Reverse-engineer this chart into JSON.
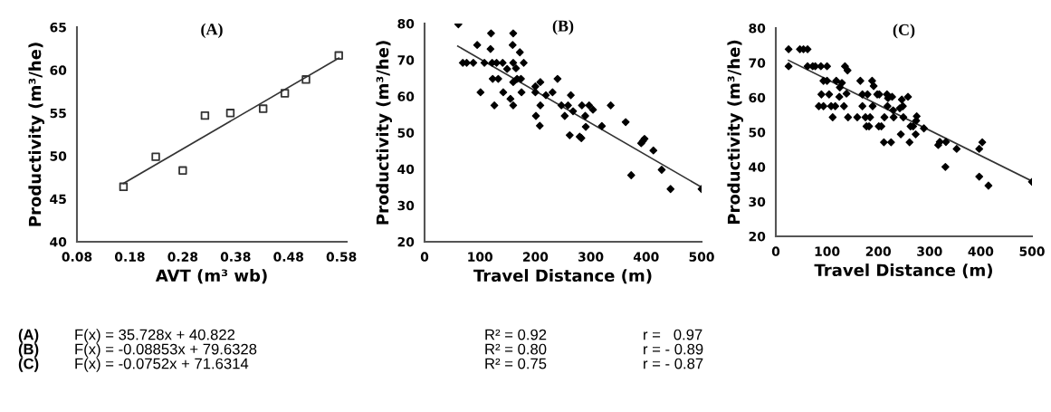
{
  "chart_data": [
    {
      "type": "scatter",
      "title": "(A)",
      "xlabel": "AVT (m³ wb)",
      "ylabel": "Productivity (m³/he)",
      "xlim": [
        0.08,
        0.59
      ],
      "ylim": [
        40,
        65
      ],
      "xticks": [
        {
          "value": 0.08,
          "label": "0.08"
        },
        {
          "value": 0.18,
          "label": "0.18"
        },
        {
          "value": 0.28,
          "label": "0.28"
        },
        {
          "value": 0.38,
          "label": "0.38"
        },
        {
          "value": 0.48,
          "label": "0.48"
        },
        {
          "value": 0.58,
          "label": "0.58"
        }
      ],
      "yticks": [
        40,
        45,
        50,
        55,
        60,
        65
      ],
      "grid": false,
      "series": [
        {
          "type": "scatter",
          "marker": "square",
          "color": "#333333",
          "x": [
            0.168,
            0.229,
            0.28,
            0.322,
            0.37,
            0.432,
            0.473,
            0.513,
            0.575
          ],
          "values": [
            46.4,
            49.9,
            48.3,
            54.7,
            55.0,
            55.5,
            57.3,
            58.9,
            61.7
          ]
        },
        {
          "type": "line",
          "color": "#333333",
          "x": [
            0.168,
            0.575
          ],
          "values": [
            46.8,
            61.4
          ]
        }
      ],
      "annotations": [
        "(A)",
        "F(x) = 35.728x + 40.822",
        "R² = 0.92",
        "r =   0.97"
      ]
    },
    {
      "type": "scatter",
      "title": "(B)",
      "xlabel": "Travel Distance (m)",
      "ylabel": "Productivity (m³/he)",
      "xlim": [
        0,
        500
      ],
      "ylim": [
        20,
        80
      ],
      "xticks": [
        0,
        100,
        200,
        300,
        400,
        500
      ],
      "yticks": [
        20,
        30,
        40,
        50,
        60,
        70,
        80
      ],
      "grid": false,
      "series": [
        {
          "type": "scatter",
          "marker": "diamond",
          "color": "#000000",
          "x": [
            61,
            69,
            76,
            88,
            95,
            101,
            108,
            120,
            119,
            122,
            123,
            126,
            130,
            133,
            141,
            142,
            149,
            155,
            160,
            159,
            160,
            160,
            160,
            165,
            167,
            172,
            174,
            175,
            179,
            200,
            200,
            201,
            209,
            209,
            208,
            219,
            231,
            240,
            247,
            253,
            259,
            262,
            264,
            268,
            280,
            283,
            284,
            290,
            291,
            297,
            304,
            320,
            336,
            363,
            373,
            391,
            394,
            397,
            413,
            428,
            444,
            500
          ],
          "values": [
            79.8,
            69.2,
            69.2,
            69.2,
            74.1,
            61.1,
            69.2,
            77.3,
            73.0,
            69.2,
            64.8,
            57.5,
            69.2,
            64.8,
            69.2,
            61.1,
            67.5,
            59.3,
            77.3,
            74.1,
            69.2,
            63.9,
            57.5,
            67.7,
            64.8,
            72.1,
            64.8,
            61.1,
            69.2,
            62.7,
            61.1,
            54.6,
            63.9,
            57.5,
            51.9,
            60.3,
            61.1,
            64.8,
            57.5,
            54.6,
            57.5,
            49.3,
            60.3,
            55.9,
            48.9,
            48.5,
            57.5,
            54.6,
            51.6,
            57.5,
            56.3,
            51.8,
            57.5,
            52.9,
            38.3,
            47.1,
            47.7,
            48.3,
            45.1,
            39.8,
            34.5,
            34.5
          ]
        },
        {
          "type": "line",
          "color": "#333333",
          "x": [
            60,
            500
          ],
          "values": [
            73.8,
            35.0
          ]
        }
      ],
      "annotations": [
        "(B)",
        "F(x) = -0.08853x + 79.6328",
        "R² = 0.80",
        "r = - 0.89"
      ]
    },
    {
      "type": "scatter",
      "title": "(C)",
      "xlabel": "Travel Distance (m)",
      "ylabel": "Productivity (m³/he)",
      "xlim": [
        0,
        500
      ],
      "ylim": [
        20,
        80
      ],
      "xticks": [
        0,
        100,
        200,
        300,
        400,
        500
      ],
      "yticks": [
        20,
        30,
        40,
        50,
        60,
        70,
        80
      ],
      "grid": false,
      "series": [
        {
          "type": "scatter",
          "marker": "diamond",
          "color": "#000000",
          "x": [
            25,
            25,
            47,
            54,
            62,
            62,
            72,
            77,
            88,
            100,
            93,
            100,
            89,
            104,
            84,
            93,
            108,
            116,
            111,
            118,
            125,
            124,
            129,
            133,
            135,
            140,
            138,
            141,
            159,
            165,
            169,
            169,
            175,
            179,
            177,
            182,
            184,
            188,
            191,
            189,
            198,
            202,
            201,
            206,
            211,
            212,
            217,
            218,
            219,
            225,
            227,
            229,
            230,
            244,
            242,
            246,
            248,
            249,
            258,
            261,
            263,
            268,
            273,
            274,
            275,
            289,
            317,
            320,
            331,
            332,
            353,
            397,
            403,
            397,
            415,
            500
          ],
          "values": [
            73.9,
            69.0,
            73.9,
            73.9,
            73.9,
            69.0,
            69.0,
            69.0,
            69.0,
            69.0,
            64.8,
            64.8,
            60.9,
            60.9,
            57.5,
            57.5,
            57.5,
            57.5,
            54.3,
            64.8,
            62.9,
            60.2,
            64.2,
            57.5,
            69.0,
            67.8,
            61.1,
            54.3,
            54.3,
            64.8,
            60.9,
            57.5,
            54.3,
            60.9,
            51.7,
            51.7,
            54.3,
            64.8,
            63.3,
            57.5,
            60.9,
            60.9,
            51.7,
            51.7,
            47.1,
            54.3,
            60.9,
            57.5,
            59.8,
            47.1,
            60.2,
            56.3,
            54.3,
            49.4,
            56.9,
            59.4,
            57.5,
            54.3,
            60.2,
            47.1,
            51.7,
            51.7,
            49.4,
            53.3,
            54.6,
            51.1,
            46.3,
            47.2,
            40.0,
            47.2,
            45.2,
            45.2,
            47.1,
            37.2,
            34.6,
            35.7
          ]
        },
        {
          "type": "line",
          "color": "#333333",
          "x": [
            25,
            500
          ],
          "values": [
            70.7,
            35.9
          ]
        }
      ],
      "annotations": [
        "(C)",
        "F(x) = -0.0752x + 71.6314",
        "R² = 0.75",
        "r = - 0.87"
      ]
    }
  ]
}
